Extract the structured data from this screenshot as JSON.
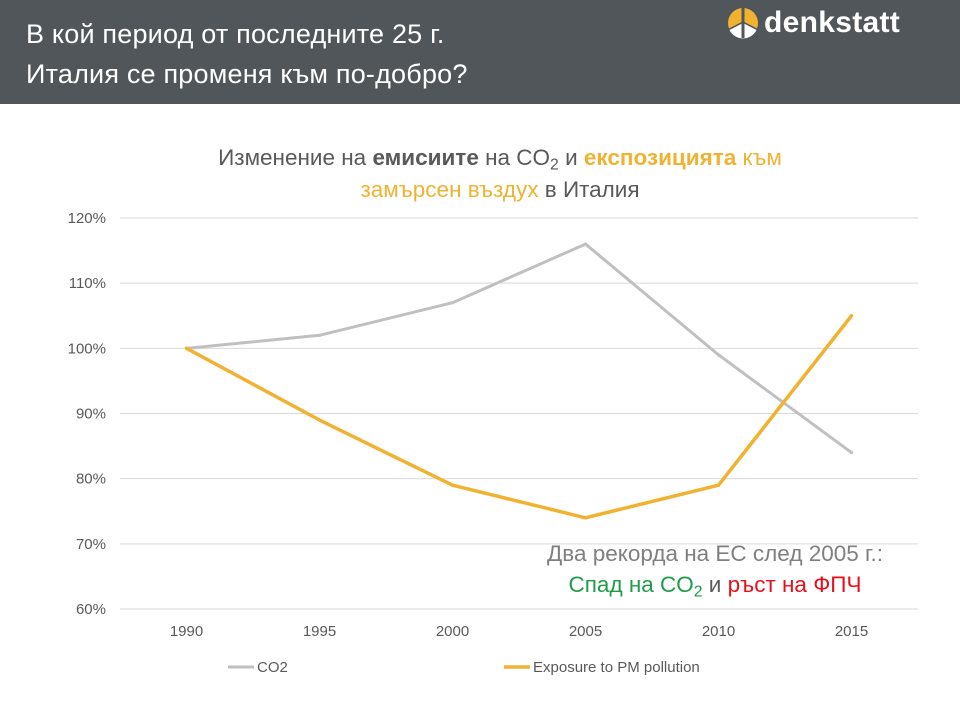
{
  "header": {
    "title_lines": [
      "В кой период от последните 25 г.",
      "Италия се променя към по-добро?"
    ],
    "logo_text": "denkstatt"
  },
  "colors": {
    "header_bg": "#50565a",
    "gray_text": "#595959",
    "accent_yellow": "#f0b230",
    "green": "#1f9c4a",
    "red": "#e8101b",
    "callout_gray": "#7f7f7f"
  },
  "chart_title": [
    [
      {
        "text": "Изменение на ",
        "color": "#595959",
        "bold": false
      },
      {
        "text": "емисиите",
        "color": "#595959",
        "bold": true
      },
      {
        "text": " на CO",
        "color": "#595959",
        "bold": false
      },
      {
        "text": "2",
        "color": "#595959",
        "bold": false,
        "sub": true
      },
      {
        "text": " и ",
        "color": "#595959",
        "bold": false
      },
      {
        "text": "експозицията",
        "color": "#f0b230",
        "bold": true
      },
      {
        "text": " към",
        "color": "#f0b230",
        "bold": false
      }
    ],
    [
      {
        "text": "замърсен въздух",
        "color": "#f0b230",
        "bold": false
      },
      {
        "text": " в Италия",
        "color": "#595959",
        "bold": false
      }
    ]
  ],
  "annotation": [
    [
      {
        "text": "Два рекорда на ЕС след 2005 г.:",
        "color": "#7f7f7f"
      }
    ],
    [
      {
        "text": "Спад на CO",
        "color": "#1f9c4a"
      },
      {
        "text": "2",
        "color": "#1f9c4a",
        "sub": true
      },
      {
        "text": " и ",
        "color": "#595959"
      },
      {
        "text": "ръст на ФПЧ",
        "color": "#e8101b"
      }
    ]
  ],
  "chart_data": {
    "type": "line",
    "categories": [
      "1990",
      "1995",
      "2000",
      "2005",
      "2010",
      "2015"
    ],
    "series": [
      {
        "name": "CO2",
        "color": "#c0c0c0",
        "values": [
          1.0,
          1.02,
          1.07,
          1.16,
          0.99,
          0.84
        ]
      },
      {
        "name": "Exposure to PM pollution",
        "color": "#f0b230",
        "values": [
          1.0,
          0.89,
          0.79,
          0.74,
          0.79,
          1.05
        ]
      }
    ],
    "y_ticks": [
      "60%",
      "70%",
      "80%",
      "90%",
      "100%",
      "110%",
      "120%"
    ],
    "ylim": [
      0.6,
      1.2
    ],
    "y_step": 0.1,
    "grid": true,
    "legend_position": "bottom"
  }
}
